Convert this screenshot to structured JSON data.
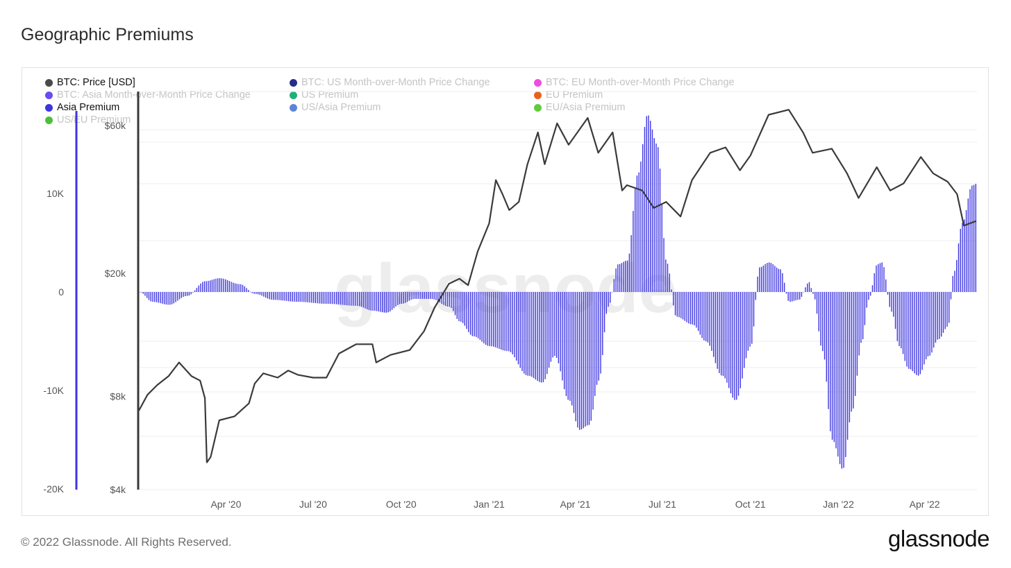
{
  "header": {
    "title": "Geographic Premiums"
  },
  "footer": {
    "copyright": "© 2022 Glassnode. All Rights Reserved.",
    "brand": "glassnode"
  },
  "watermark": "glassnode",
  "legend": [
    {
      "label": "BTC: Price [USD]",
      "color": "#4a4a4a",
      "active": true
    },
    {
      "label": "BTC: US Month-over-Month Price Change",
      "color": "#2b2b8a",
      "active": false
    },
    {
      "label": "BTC: EU Month-over-Month Price Change",
      "color": "#f04ce0",
      "active": false
    },
    {
      "label": "BTC: Asia Month-over-Month Price Change",
      "color": "#6a4cf0",
      "active": false
    },
    {
      "label": "US Premium",
      "color": "#1fb07a",
      "active": false
    },
    {
      "label": "EU Premium",
      "color": "#e8621f",
      "active": false
    },
    {
      "label": "Asia Premium",
      "color": "#3d35e0",
      "active": true
    },
    {
      "label": "US/Asia Premium",
      "color": "#5b86d8",
      "active": false
    },
    {
      "label": "EU/Asia Premium",
      "color": "#5fcb3a",
      "active": false
    },
    {
      "label": "US/EU Premium",
      "color": "#4cbf3a",
      "active": false
    }
  ],
  "chart_data": {
    "type": "bar+line",
    "x_ticks": [
      "Apr '20",
      "Jul '20",
      "Oct '20",
      "Jan '21",
      "Apr '21",
      "Jul '21",
      "Oct '21",
      "Jan '22",
      "Apr '22"
    ],
    "x_tick_dates": [
      "2020-04-01",
      "2020-07-01",
      "2020-10-01",
      "2021-01-01",
      "2021-04-01",
      "2021-07-01",
      "2021-10-01",
      "2022-01-01",
      "2022-04-01"
    ],
    "x_range": [
      "2020-01-01",
      "2022-05-25"
    ],
    "y_left": {
      "label": "",
      "ticks": [
        "10K",
        "0",
        "-10K",
        "-20K"
      ],
      "tick_values": [
        10000,
        0,
        -10000,
        -20000
      ],
      "range": [
        -20000,
        20000
      ]
    },
    "y_right": {
      "label": "",
      "scale": "log",
      "ticks": [
        "$60k",
        "$20k",
        "$8k",
        "$4k"
      ],
      "tick_values": [
        60000,
        20000,
        8000,
        4000
      ],
      "range": [
        4000,
        68000
      ]
    },
    "grid": true,
    "legend_position": "top",
    "series": [
      {
        "name": "Asia Premium",
        "type": "bar",
        "axis": "left",
        "color": "#3d35e0",
        "points": [
          [
            "2020-01-01",
            0
          ],
          [
            "2020-01-15",
            -1000
          ],
          [
            "2020-02-01",
            -1300
          ],
          [
            "2020-02-20",
            -400
          ],
          [
            "2020-03-10",
            1100
          ],
          [
            "2020-03-25",
            1400
          ],
          [
            "2020-04-15",
            800
          ],
          [
            "2020-05-01",
            -200
          ],
          [
            "2020-05-20",
            -800
          ],
          [
            "2020-06-15",
            -1000
          ],
          [
            "2020-07-15",
            -1200
          ],
          [
            "2020-08-15",
            -1400
          ],
          [
            "2020-09-01",
            -1900
          ],
          [
            "2020-09-15",
            -2100
          ],
          [
            "2020-10-01",
            -1200
          ],
          [
            "2020-10-15",
            -700
          ],
          [
            "2020-11-01",
            -700
          ],
          [
            "2020-11-20",
            -1500
          ],
          [
            "2020-12-01",
            -3000
          ],
          [
            "2020-12-15",
            -4500
          ],
          [
            "2021-01-01",
            -5500
          ],
          [
            "2021-01-20",
            -6000
          ],
          [
            "2021-02-10",
            -8500
          ],
          [
            "2021-02-25",
            -9200
          ],
          [
            "2021-03-10",
            -6500
          ],
          [
            "2021-03-25",
            -11000
          ],
          [
            "2021-04-05",
            -14000
          ],
          [
            "2021-04-15",
            -13500
          ],
          [
            "2021-04-25",
            -9000
          ],
          [
            "2021-05-05",
            -1500
          ],
          [
            "2021-05-15",
            2800
          ],
          [
            "2021-05-25",
            3200
          ],
          [
            "2021-06-05",
            12000
          ],
          [
            "2021-06-15",
            18000
          ],
          [
            "2021-06-25",
            15000
          ],
          [
            "2021-07-05",
            3000
          ],
          [
            "2021-07-15",
            -2500
          ],
          [
            "2021-08-01",
            -3300
          ],
          [
            "2021-08-15",
            -5000
          ],
          [
            "2021-09-01",
            -8500
          ],
          [
            "2021-09-15",
            -11000
          ],
          [
            "2021-10-01",
            -5500
          ],
          [
            "2021-10-10",
            2500
          ],
          [
            "2021-10-20",
            3000
          ],
          [
            "2021-11-01",
            2300
          ],
          [
            "2021-11-10",
            -1000
          ],
          [
            "2021-11-20",
            -800
          ],
          [
            "2021-12-01",
            1000
          ],
          [
            "2021-12-05",
            -200
          ],
          [
            "2021-12-15",
            -6000
          ],
          [
            "2021-12-25",
            -15000
          ],
          [
            "2022-01-05",
            -18000
          ],
          [
            "2022-01-15",
            -12000
          ],
          [
            "2022-01-25",
            -5000
          ],
          [
            "2022-02-01",
            -800
          ],
          [
            "2022-02-10",
            2800
          ],
          [
            "2022-02-15",
            3000
          ],
          [
            "2022-02-25",
            -2000
          ],
          [
            "2022-03-05",
            -5500
          ],
          [
            "2022-03-15",
            -7800
          ],
          [
            "2022-03-25",
            -8500
          ],
          [
            "2022-04-05",
            -6500
          ],
          [
            "2022-04-15",
            -4800
          ],
          [
            "2022-04-25",
            -3500
          ],
          [
            "2022-05-01",
            2000
          ],
          [
            "2022-05-10",
            7000
          ],
          [
            "2022-05-20",
            10800
          ],
          [
            "2022-05-25",
            11000
          ]
        ]
      },
      {
        "name": "BTC: Price [USD]",
        "type": "line",
        "axis": "right",
        "color": "#3a3a3a",
        "points": [
          [
            "2020-01-01",
            7200
          ],
          [
            "2020-01-10",
            8100
          ],
          [
            "2020-01-20",
            8700
          ],
          [
            "2020-02-01",
            9300
          ],
          [
            "2020-02-12",
            10300
          ],
          [
            "2020-02-25",
            9300
          ],
          [
            "2020-03-05",
            9000
          ],
          [
            "2020-03-10",
            7900
          ],
          [
            "2020-03-12",
            4900
          ],
          [
            "2020-03-16",
            5100
          ],
          [
            "2020-03-25",
            6700
          ],
          [
            "2020-04-10",
            6900
          ],
          [
            "2020-04-25",
            7600
          ],
          [
            "2020-05-01",
            8800
          ],
          [
            "2020-05-10",
            9500
          ],
          [
            "2020-05-25",
            9200
          ],
          [
            "2020-06-05",
            9700
          ],
          [
            "2020-06-15",
            9400
          ],
          [
            "2020-07-01",
            9200
          ],
          [
            "2020-07-15",
            9200
          ],
          [
            "2020-07-28",
            11000
          ],
          [
            "2020-08-15",
            11800
          ],
          [
            "2020-09-01",
            11800
          ],
          [
            "2020-09-05",
            10300
          ],
          [
            "2020-09-20",
            10900
          ],
          [
            "2020-10-10",
            11300
          ],
          [
            "2020-10-25",
            13000
          ],
          [
            "2020-11-05",
            15500
          ],
          [
            "2020-11-20",
            18500
          ],
          [
            "2020-12-01",
            19200
          ],
          [
            "2020-12-10",
            18300
          ],
          [
            "2020-12-20",
            23500
          ],
          [
            "2021-01-01",
            29000
          ],
          [
            "2021-01-08",
            40000
          ],
          [
            "2021-01-15",
            36000
          ],
          [
            "2021-01-22",
            32000
          ],
          [
            "2021-02-01",
            34000
          ],
          [
            "2021-02-10",
            45000
          ],
          [
            "2021-02-21",
            57000
          ],
          [
            "2021-02-28",
            45000
          ],
          [
            "2021-03-13",
            61000
          ],
          [
            "2021-03-25",
            52000
          ],
          [
            "2021-04-14",
            63500
          ],
          [
            "2021-04-25",
            49000
          ],
          [
            "2021-05-10",
            57000
          ],
          [
            "2021-05-20",
            37000
          ],
          [
            "2021-05-25",
            38500
          ],
          [
            "2021-06-10",
            37000
          ],
          [
            "2021-06-22",
            32500
          ],
          [
            "2021-07-05",
            34000
          ],
          [
            "2021-07-20",
            30500
          ],
          [
            "2021-08-01",
            40000
          ],
          [
            "2021-08-20",
            49000
          ],
          [
            "2021-09-05",
            51000
          ],
          [
            "2021-09-20",
            43000
          ],
          [
            "2021-10-01",
            48000
          ],
          [
            "2021-10-20",
            65000
          ],
          [
            "2021-11-10",
            67500
          ],
          [
            "2021-11-25",
            57000
          ],
          [
            "2021-12-05",
            49000
          ],
          [
            "2021-12-25",
            50500
          ],
          [
            "2022-01-10",
            42000
          ],
          [
            "2022-01-22",
            35000
          ],
          [
            "2022-02-10",
            44000
          ],
          [
            "2022-02-24",
            37000
          ],
          [
            "2022-03-10",
            39000
          ],
          [
            "2022-03-28",
            47500
          ],
          [
            "2022-04-10",
            42000
          ],
          [
            "2022-04-25",
            39500
          ],
          [
            "2022-05-05",
            36000
          ],
          [
            "2022-05-12",
            28500
          ],
          [
            "2022-05-25",
            29500
          ]
        ]
      }
    ]
  }
}
